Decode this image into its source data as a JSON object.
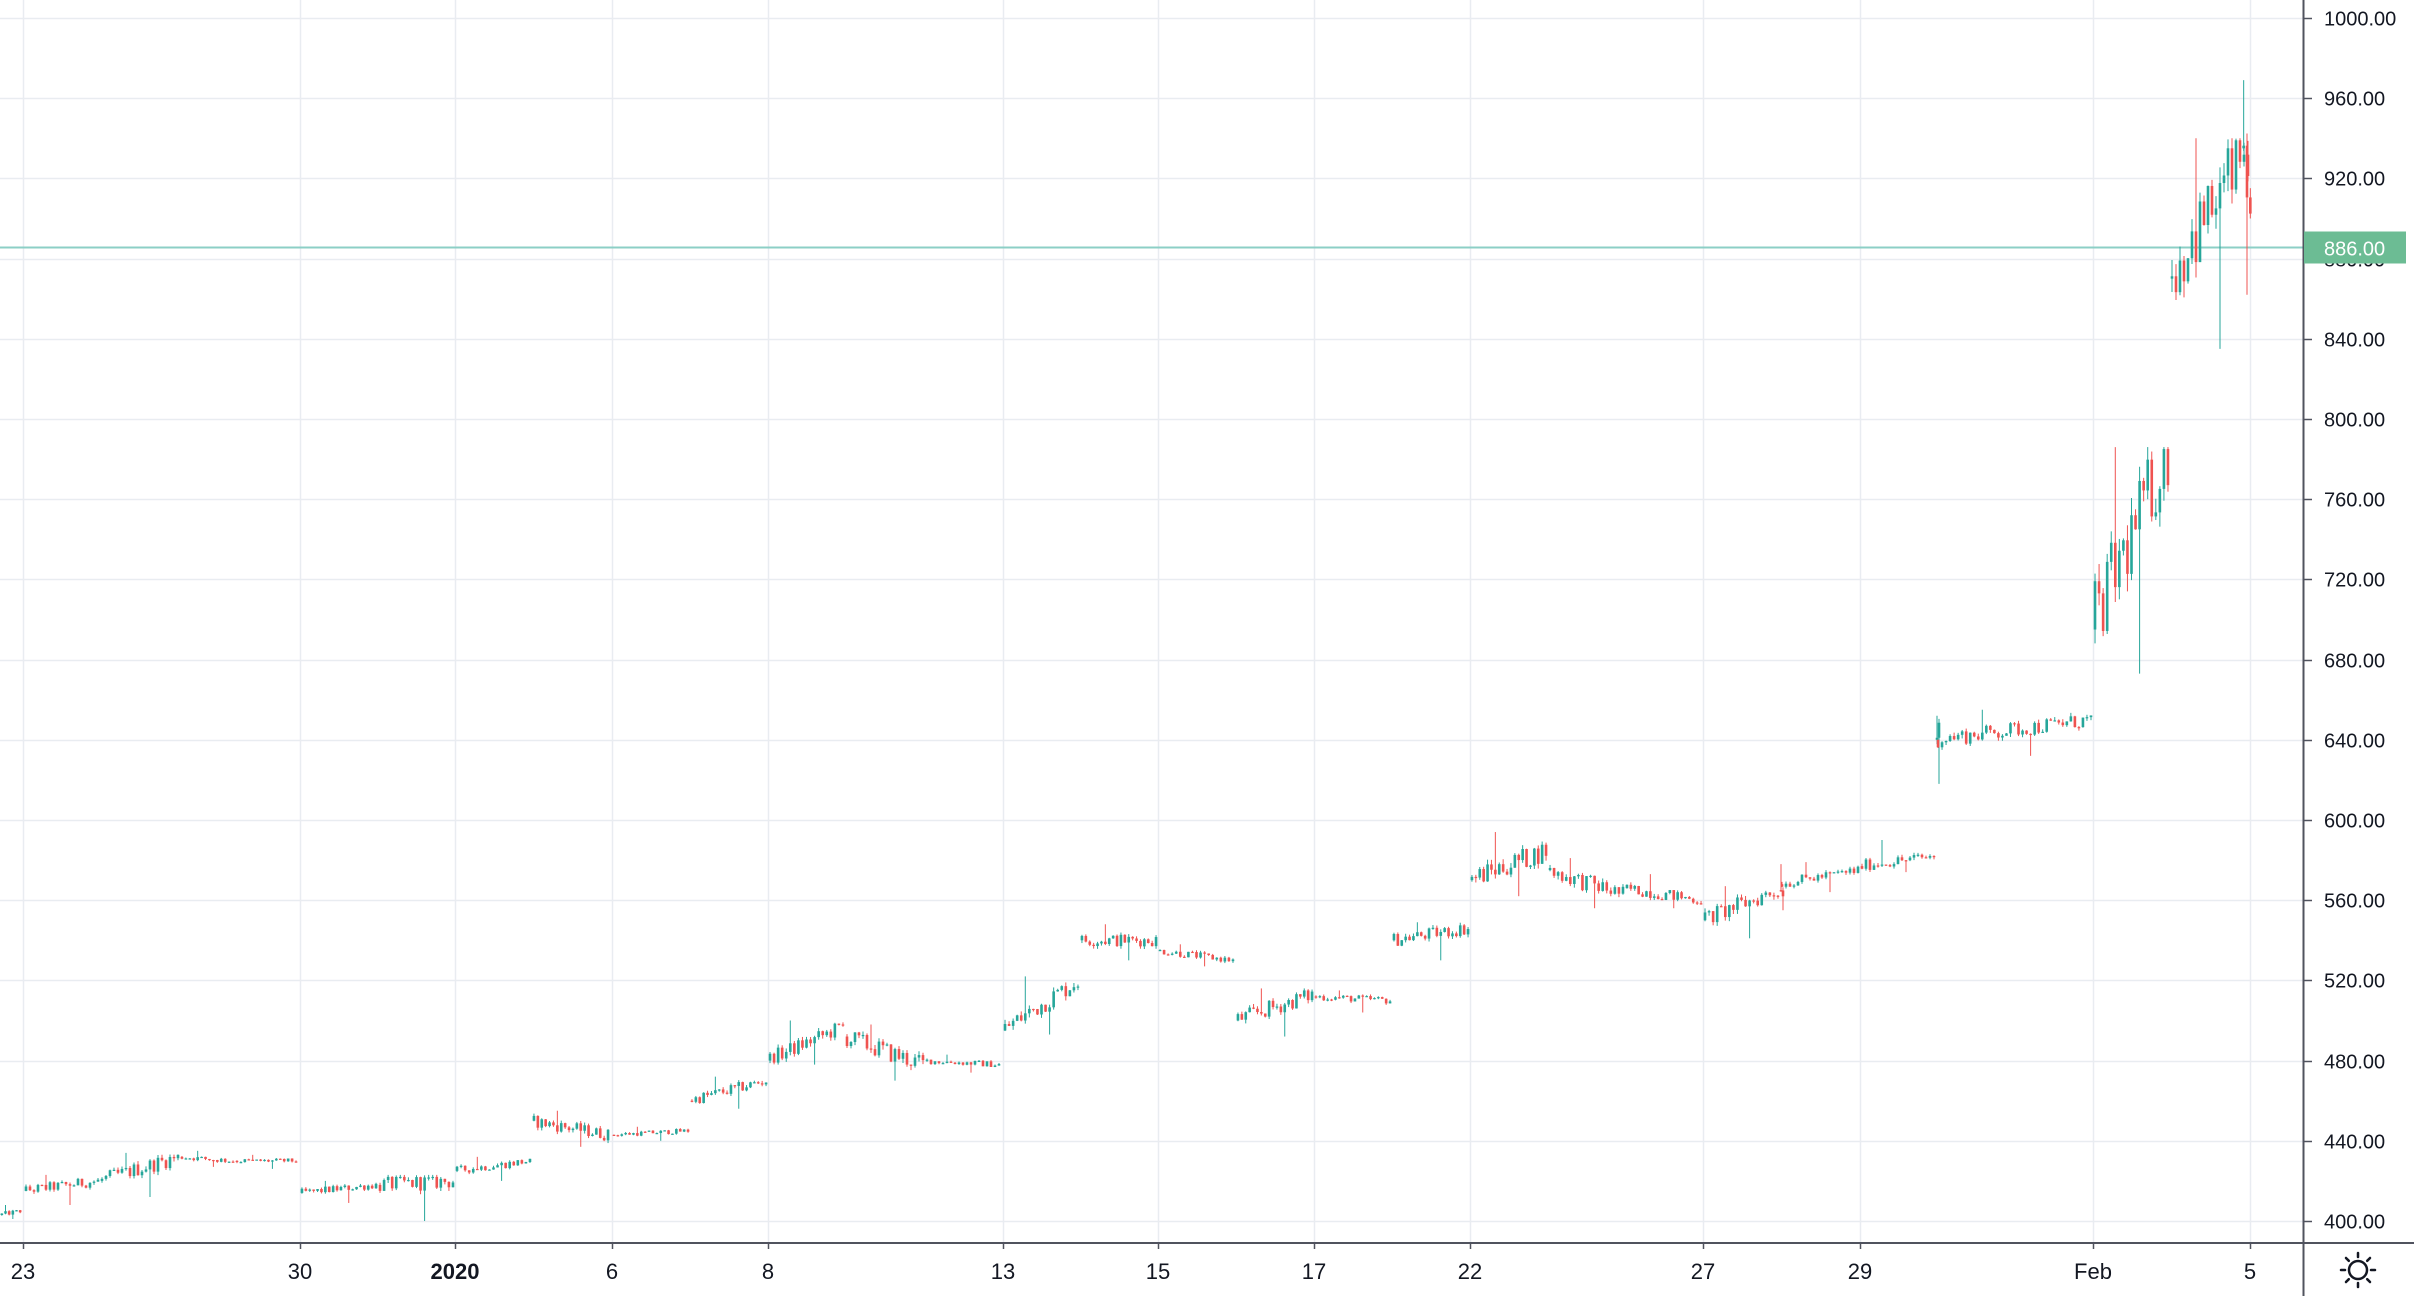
{
  "colors": {
    "up": "#26a69a",
    "down": "#ef5350",
    "grid": "#e9ecf1",
    "axis_line": "#50535e",
    "price_line": "#8ccfc6",
    "price_tag": "#6cbc94",
    "text": "#131722"
  },
  "icons": {
    "settings": "sun-gear-icon"
  },
  "chart_data": {
    "type": "candlestick",
    "title": "",
    "xlabel": "",
    "ylabel": "",
    "ylim": [
      395,
      1000
    ],
    "grid": true,
    "y_ticks": [
      "400.00",
      "440.00",
      "480.00",
      "520.00",
      "560.00",
      "600.00",
      "640.00",
      "680.00",
      "720.00",
      "760.00",
      "800.00",
      "840.00",
      "880.00",
      "920.00",
      "960.00",
      "1000.00"
    ],
    "x_tick_labels": [
      {
        "label": "23",
        "date": "2019-12-23",
        "bold": false
      },
      {
        "label": "30",
        "date": "2019-12-30",
        "bold": false
      },
      {
        "label": "2020",
        "date": "2020-01-02",
        "bold": true
      },
      {
        "label": "6",
        "date": "2020-01-06",
        "bold": false
      },
      {
        "label": "8",
        "date": "2020-01-08",
        "bold": false
      },
      {
        "label": "13",
        "date": "2020-01-13",
        "bold": false
      },
      {
        "label": "15",
        "date": "2020-01-15",
        "bold": false
      },
      {
        "label": "17",
        "date": "2020-01-17",
        "bold": false
      },
      {
        "label": "22",
        "date": "2020-01-22",
        "bold": false
      },
      {
        "label": "27",
        "date": "2020-01-27",
        "bold": false
      },
      {
        "label": "29",
        "date": "2020-01-29",
        "bold": false
      },
      {
        "label": "Feb",
        "date": "2020-02-01",
        "bold": false
      },
      {
        "label": "5",
        "date": "2020-02-05",
        "bold": false
      }
    ],
    "last_price": "886.00",
    "last_price_value": 886,
    "sessions": [
      {
        "date": "2019-12-20",
        "open": 403,
        "close": 405,
        "low": 401,
        "high": 408
      },
      {
        "date": "2019-12-23",
        "open": 415,
        "close": 420,
        "low": 408,
        "high": 423
      },
      {
        "date": "2019-12-24",
        "open": 420,
        "close": 432,
        "low": 412,
        "high": 434
      },
      {
        "date": "2019-12-26",
        "open": 432,
        "close": 430,
        "low": 427,
        "high": 435
      },
      {
        "date": "2019-12-27",
        "open": 430,
        "close": 430,
        "low": 426,
        "high": 433
      },
      {
        "date": "2019-12-30",
        "open": 414,
        "close": 418,
        "low": 409,
        "high": 420
      },
      {
        "date": "2019-12-31",
        "open": 418,
        "close": 420,
        "low": 400,
        "high": 423
      },
      {
        "date": "2020-01-02",
        "open": 425,
        "close": 430,
        "low": 420,
        "high": 432
      },
      {
        "date": "2020-01-03",
        "open": 450,
        "close": 443,
        "low": 437,
        "high": 455
      },
      {
        "date": "2020-01-06",
        "open": 443,
        "close": 445,
        "low": 440,
        "high": 447
      },
      {
        "date": "2020-01-07",
        "open": 460,
        "close": 470,
        "low": 456,
        "high": 472
      },
      {
        "date": "2020-01-08",
        "open": 480,
        "close": 497,
        "low": 478,
        "high": 500
      },
      {
        "date": "2020-01-09",
        "open": 492,
        "close": 478,
        "low": 470,
        "high": 498
      },
      {
        "date": "2020-01-10",
        "open": 480,
        "close": 478,
        "low": 474,
        "high": 483
      },
      {
        "date": "2020-01-13",
        "open": 495,
        "close": 520,
        "low": 493,
        "high": 522
      },
      {
        "date": "2020-01-14",
        "open": 540,
        "close": 540,
        "low": 530,
        "high": 548
      },
      {
        "date": "2020-01-15",
        "open": 535,
        "close": 530,
        "low": 527,
        "high": 538
      },
      {
        "date": "2020-01-16",
        "open": 500,
        "close": 513,
        "low": 492,
        "high": 516
      },
      {
        "date": "2020-01-17",
        "open": 512,
        "close": 510,
        "low": 504,
        "high": 515
      },
      {
        "date": "2020-01-21",
        "open": 540,
        "close": 546,
        "low": 530,
        "high": 549
      },
      {
        "date": "2020-01-22",
        "open": 570,
        "close": 585,
        "low": 562,
        "high": 594
      },
      {
        "date": "2020-01-23",
        "open": 575,
        "close": 563,
        "low": 556,
        "high": 581
      },
      {
        "date": "2020-01-24",
        "open": 566,
        "close": 560,
        "low": 556,
        "high": 573
      },
      {
        "date": "2020-01-27",
        "open": 550,
        "close": 565,
        "low": 541,
        "high": 567
      },
      {
        "date": "2020-01-28",
        "open": 565,
        "close": 565,
        "low": 555,
        "high": 578
      },
      {
        "date": "2020-01-29",
        "open": 568,
        "close": 575,
        "low": 564,
        "high": 579
      },
      {
        "date": "2020-01-30",
        "open": 577,
        "close": 582,
        "low": 574,
        "high": 590
      },
      {
        "date": "2020-01-31",
        "open": 640,
        "close": 645,
        "low": 618,
        "high": 652
      },
      {
        "date": "2020-02-03",
        "open": 640,
        "close": 650,
        "low": 632,
        "high": 655
      },
      {
        "date": "2020-02-04",
        "open": 695,
        "close": 785,
        "low": 673,
        "high": 786
      },
      {
        "date": "2020-02-05",
        "open": 870,
        "close": 935,
        "low": 835,
        "high": 940
      },
      {
        "date": "2020-02-06",
        "open": 935,
        "close": 886,
        "low": 862,
        "high": 969
      }
    ]
  }
}
